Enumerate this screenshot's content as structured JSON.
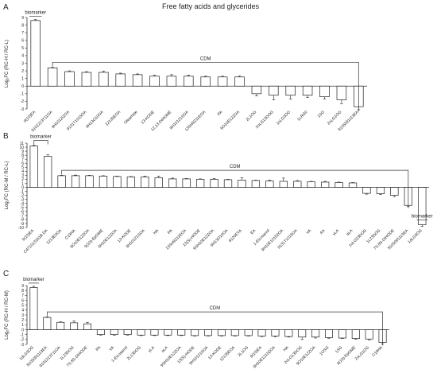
{
  "figure_title": "Free fatty acids and glycerides",
  "chart_data": [
    {
      "type": "bar",
      "panel": "A",
      "ylabel": "Log₂FC (RC-H / RC-L)",
      "ylim": [
        -3,
        9
      ],
      "yticks": [
        -3,
        -2,
        -1,
        0,
        1,
        2,
        3,
        4,
        5,
        6,
        7,
        8,
        9
      ],
      "categories": [
        "9(10)EA",
        "9101213T11OA",
        "9H1012IZOA",
        "9131T1015OA",
        "9H13O10OA",
        "12135EOA",
        "Oleamide",
        "13-KODE",
        "12,13-DiHOME",
        "9H10121SOA",
        "13SH9Z11EOA",
        "PA",
        "9O10E12ZOA",
        "2L1OG",
        "2oLG13DOG",
        "1oLG3OG",
        "1LRG0",
        "1SG",
        "2oLG1OG",
        "8105091113EA"
      ],
      "values": [
        8.6,
        2.4,
        1.9,
        1.8,
        1.8,
        1.6,
        1.5,
        1.3,
        1.3,
        1.3,
        1.2,
        1.2,
        1.2,
        -1.0,
        -1.2,
        -1.2,
        -1.2,
        -1.4,
        -1.8,
        -2.7
      ],
      "errors": [
        0.12,
        0.1,
        0.1,
        0.1,
        0.15,
        0.1,
        0.1,
        0.12,
        0.2,
        0.15,
        0.1,
        0.1,
        0.12,
        0.3,
        0.6,
        0.5,
        0.3,
        0.3,
        0.5,
        0.4
      ],
      "annotations": [
        {
          "label": "biomarker",
          "from": 0,
          "to": 0
        },
        {
          "label": "CDM",
          "from": 1,
          "to": 19
        }
      ]
    },
    {
      "type": "bar",
      "panel": "B",
      "ylabel": "Log₂FC (RC-M / RC-L)",
      "ylim": [
        -10,
        11
      ],
      "yticks": [
        -10,
        -9,
        -8,
        -7,
        -6,
        -5,
        -4,
        -3,
        -2,
        -1,
        0,
        1,
        2,
        3,
        4,
        5,
        6,
        7,
        8,
        9,
        10,
        11
      ],
      "categories": [
        "9(10)EA",
        "C471013161B DA",
        "1213E0OA",
        "C19HA",
        "9O10E12ZOA",
        "9(10)-EpOME",
        "9H10E12ZOA",
        "13-KODE",
        "9H10121SOA",
        "HA",
        "PA",
        "13SH9Z11EOA",
        "13(S)-HODE",
        "9SH10E12ZOA",
        "9H13O10OA",
        "9120EYA",
        "EA",
        "1-Eicosanol",
        "9H10E1215ZOA",
        "9131T1015OA",
        "VA",
        "AA",
        "γLA",
        "αLA",
        "1oLG23DOG",
        "1L23DOG",
        "7S,8S-DiHODE",
        "8105091113EA",
        "1dLG3OG"
      ],
      "values": [
        10.3,
        7.7,
        2.9,
        2.9,
        2.9,
        2.8,
        2.7,
        2.6,
        2.6,
        2.4,
        2.1,
        2.1,
        2.0,
        2.0,
        1.9,
        1.8,
        1.7,
        1.6,
        1.5,
        1.5,
        1.4,
        1.3,
        1.2,
        1.1,
        -1.5,
        -1.6,
        -2.0,
        -4.5,
        -9.3
      ],
      "errors": [
        0.2,
        0.4,
        0.1,
        0.15,
        0.1,
        0.1,
        0.1,
        0.1,
        0.2,
        0.4,
        0.2,
        0.1,
        0.1,
        0.2,
        0.1,
        0.6,
        0.1,
        0.2,
        0.8,
        0.2,
        0.1,
        0.2,
        0.1,
        0.1,
        0.2,
        0.2,
        0.3,
        0.3,
        0.4
      ],
      "annotations": [
        {
          "label": "biomarker",
          "from": 0,
          "to": 1
        },
        {
          "label": "CDM",
          "from": 2,
          "to": 27
        },
        {
          "label": "biomarker",
          "from": 28,
          "to": 28
        }
      ]
    },
    {
      "type": "bar",
      "panel": "C",
      "ylabel": "Log₂FC (RC-H / RC-M)",
      "ylim": [
        -3,
        9
      ],
      "yticks": [
        -3,
        -2,
        -1,
        0,
        1,
        2,
        3,
        4,
        5,
        6,
        7,
        8,
        9
      ],
      "categories": [
        "1dLG3OG",
        "8105091113EA",
        "9101213T11OA",
        "1L23DOG",
        "7S,8S-DiHODE",
        "PA",
        "VA",
        "1-Eicosanol",
        "2L13DOG",
        "γLA",
        "αLA",
        "9SH10E12ZOA",
        "13(S)-HODE",
        "9H10121SOA",
        "13-KODE",
        "12135EOA",
        "2L1OG",
        "9(10)EA",
        "9H10E1215ZOA",
        "HA",
        "2oLG13DOG",
        "9O10E12ZOA",
        "1OSG",
        "1SG",
        "9(10)-EpOME",
        "2oLG1OG",
        "C19HA"
      ],
      "values": [
        8.6,
        2.5,
        1.5,
        1.4,
        1.2,
        -1.0,
        -1.0,
        -1.0,
        -1.1,
        -1.1,
        -1.1,
        -1.1,
        -1.2,
        -1.2,
        -1.2,
        -1.2,
        -1.2,
        -1.3,
        -1.3,
        -1.4,
        -1.5,
        -1.5,
        -1.6,
        -1.7,
        -1.8,
        -1.9,
        -2.6
      ],
      "errors": [
        0.25,
        0.15,
        0.1,
        0.4,
        0.3,
        0.1,
        0.1,
        0.1,
        0.1,
        0.1,
        0.1,
        0.1,
        0.1,
        0.1,
        0.1,
        0.1,
        0.1,
        0.1,
        0.15,
        0.1,
        0.5,
        0.2,
        0.15,
        0.1,
        0.15,
        0.2,
        0.3
      ],
      "annotations": [
        {
          "label": "biomarker",
          "from": 0,
          "to": 0
        },
        {
          "label": "CDM",
          "from": 1,
          "to": 26
        }
      ]
    }
  ]
}
